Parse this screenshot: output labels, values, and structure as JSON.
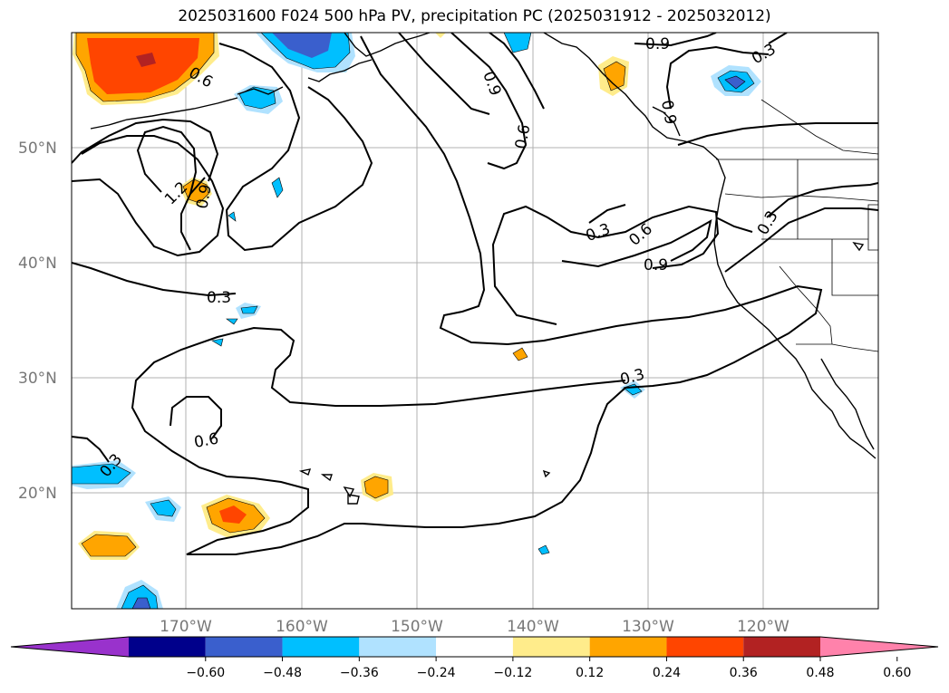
{
  "title": "2025031600 F024 500 hPa PV, precipitation PC (2025031912 - 2025032012)",
  "lat_labels": [
    "50°N",
    "40°N",
    "30°N",
    "20°N"
  ],
  "lon_labels": [
    "170°W",
    "160°W",
    "150°W",
    "140°W",
    "130°W",
    "120°W"
  ],
  "contour_labels": [
    "0.6",
    "0.9",
    "0.6",
    "0.9",
    "0.9",
    "0.3",
    "1.2",
    "0.9",
    "0.3",
    "0.3",
    "0.6",
    "0.9",
    "0.3",
    "0.3",
    "0.6",
    "0.3"
  ],
  "colorbar": {
    "tick_labels": [
      "−0.60",
      "−0.48",
      "−0.36",
      "−0.24",
      "−0.12",
      "0.12",
      "0.24",
      "0.36",
      "0.48",
      "0.60"
    ],
    "colors": [
      "#9932cc",
      "#00008b",
      "#3a5fcd",
      "#00bfff",
      "#b0e2ff",
      "#ffffff",
      "#ffec8b",
      "#ffa500",
      "#ff4500",
      "#b22222",
      "#ff82ab"
    ]
  }
}
